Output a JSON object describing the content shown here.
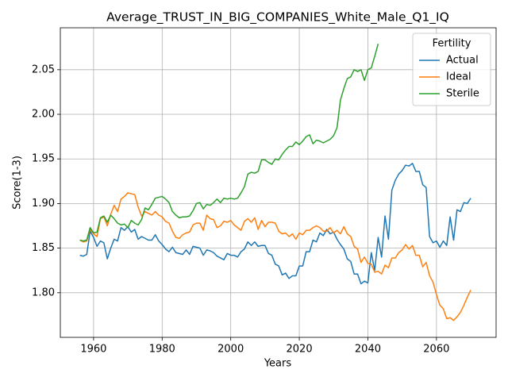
{
  "chart_data": {
    "type": "line",
    "title": "Average_TRUST_IN_BIG_COMPANIES_White_Male_Q1_IQ",
    "xlabel": "Years",
    "ylabel": "Score(1-3)",
    "legend_title": "Fertility",
    "legend": "upper right",
    "grid": true,
    "x": [
      1956,
      1957,
      1958,
      1959,
      1960,
      1961,
      1962,
      1963,
      1964,
      1965,
      1966,
      1967,
      1968,
      1969,
      1970,
      1971,
      1972,
      1973,
      1974,
      1975,
      1976,
      1977,
      1978,
      1979,
      1980,
      1981,
      1982,
      1983,
      1984,
      1985,
      1986,
      1987,
      1988,
      1989,
      1990,
      1991,
      1992,
      1993,
      1994,
      1995,
      1996,
      1997,
      1998,
      1999,
      2000,
      2001,
      2002,
      2003,
      2004,
      2005,
      2006,
      2007,
      2008,
      2009,
      2010,
      2011,
      2012,
      2013,
      2014,
      2015,
      2016,
      2017,
      2018,
      2019,
      2020,
      2021,
      2022,
      2023,
      2024,
      2025,
      2026,
      2027,
      2028,
      2029,
      2030,
      2031,
      2032,
      2033,
      2034,
      2035,
      2036,
      2037,
      2038,
      2039,
      2040,
      2041,
      2042,
      2043,
      2044,
      2045,
      2046,
      2047,
      2048,
      2049,
      2050,
      2051,
      2052,
      2053,
      2054,
      2055,
      2056,
      2057,
      2058,
      2059,
      2060,
      2061,
      2062,
      2063,
      2064,
      2065,
      2066,
      2067,
      2068,
      2069,
      2070
    ],
    "series": [
      {
        "name": "Actual",
        "color": "#1f77b4",
        "values": [
          1.842,
          1.841,
          1.843,
          1.869,
          1.862,
          1.852,
          1.858,
          1.856,
          1.838,
          1.85,
          1.86,
          1.858,
          1.873,
          1.87,
          1.874,
          1.868,
          1.871,
          1.86,
          1.863,
          1.861,
          1.859,
          1.859,
          1.865,
          1.858,
          1.854,
          1.849,
          1.846,
          1.851,
          1.845,
          1.844,
          1.843,
          1.848,
          1.843,
          1.852,
          1.851,
          1.85,
          1.842,
          1.848,
          1.847,
          1.845,
          1.841,
          1.839,
          1.837,
          1.844,
          1.842,
          1.842,
          1.84,
          1.846,
          1.849,
          1.857,
          1.853,
          1.857,
          1.852,
          1.853,
          1.853,
          1.844,
          1.842,
          1.832,
          1.83,
          1.82,
          1.822,
          1.816,
          1.819,
          1.819,
          1.83,
          1.83,
          1.846,
          1.846,
          1.859,
          1.857,
          1.867,
          1.864,
          1.871,
          1.866,
          1.868,
          1.86,
          1.854,
          1.849,
          1.838,
          1.835,
          1.821,
          1.821,
          1.81,
          1.813,
          1.811,
          1.845,
          1.825,
          1.862,
          1.84,
          1.886,
          1.86,
          1.915,
          1.926,
          1.933,
          1.937,
          1.943,
          1.942,
          1.945,
          1.936,
          1.936,
          1.921,
          1.918,
          1.863,
          1.856,
          1.858,
          1.851,
          1.858,
          1.853,
          1.885,
          1.859,
          1.893,
          1.891,
          1.901,
          1.9,
          1.906
        ]
      },
      {
        "name": "Ideal",
        "color": "#ff7f0e",
        "values": [
          1.859,
          1.857,
          1.858,
          1.871,
          1.866,
          1.863,
          1.883,
          1.885,
          1.875,
          1.888,
          1.898,
          1.891,
          1.905,
          1.908,
          1.912,
          1.911,
          1.91,
          1.896,
          1.886,
          1.891,
          1.889,
          1.887,
          1.891,
          1.887,
          1.885,
          1.88,
          1.878,
          1.869,
          1.862,
          1.861,
          1.865,
          1.867,
          1.868,
          1.876,
          1.878,
          1.878,
          1.87,
          1.887,
          1.883,
          1.882,
          1.873,
          1.875,
          1.88,
          1.879,
          1.881,
          1.876,
          1.873,
          1.87,
          1.88,
          1.883,
          1.879,
          1.884,
          1.871,
          1.881,
          1.874,
          1.879,
          1.879,
          1.878,
          1.869,
          1.866,
          1.867,
          1.863,
          1.866,
          1.86,
          1.867,
          1.865,
          1.87,
          1.87,
          1.873,
          1.875,
          1.873,
          1.869,
          1.869,
          1.873,
          1.867,
          1.87,
          1.866,
          1.874,
          1.866,
          1.863,
          1.852,
          1.849,
          1.834,
          1.84,
          1.833,
          1.832,
          1.823,
          1.824,
          1.821,
          1.831,
          1.828,
          1.839,
          1.839,
          1.845,
          1.848,
          1.854,
          1.849,
          1.853,
          1.842,
          1.842,
          1.829,
          1.834,
          1.819,
          1.812,
          1.798,
          1.786,
          1.782,
          1.771,
          1.772,
          1.769,
          1.773,
          1.778,
          1.786,
          1.795,
          1.803
        ]
      },
      {
        "name": "Sterile",
        "color": "#2ca02c",
        "values": [
          1.859,
          1.858,
          1.859,
          1.873,
          1.867,
          1.868,
          1.884,
          1.886,
          1.879,
          1.887,
          1.883,
          1.878,
          1.876,
          1.877,
          1.873,
          1.881,
          1.878,
          1.876,
          1.882,
          1.895,
          1.893,
          1.899,
          1.906,
          1.907,
          1.908,
          1.905,
          1.901,
          1.891,
          1.887,
          1.884,
          1.885,
          1.885,
          1.886,
          1.892,
          1.9,
          1.901,
          1.894,
          1.899,
          1.898,
          1.901,
          1.905,
          1.901,
          1.906,
          1.905,
          1.906,
          1.905,
          1.906,
          1.912,
          1.919,
          1.933,
          1.935,
          1.934,
          1.936,
          1.949,
          1.949,
          1.946,
          1.944,
          1.95,
          1.949,
          1.955,
          1.96,
          1.964,
          1.964,
          1.969,
          1.966,
          1.97,
          1.975,
          1.977,
          1.967,
          1.971,
          1.97,
          1.968,
          1.97,
          1.972,
          1.976,
          1.985,
          2.016,
          2.029,
          2.04,
          2.042,
          2.05,
          2.048,
          2.05,
          2.038,
          2.05,
          2.052,
          2.065,
          2.079,
          null,
          null,
          null,
          null,
          null,
          null,
          null,
          null,
          null,
          null,
          null,
          null,
          null,
          null,
          null,
          null,
          null,
          null,
          null,
          null,
          null,
          null,
          null,
          null,
          null,
          null,
          null
        ]
      }
    ],
    "xlim": [
      1950.3,
      2077.4
    ],
    "xticks": [
      1960,
      1980,
      2000,
      2020,
      2040,
      2060
    ],
    "ylim": [
      1.75,
      2.097
    ],
    "yticks": [
      {
        "value": 1.8,
        "label": "1.80"
      },
      1.85,
      {
        "value": 1.9,
        "label": "1.90"
      },
      1.95,
      {
        "value": 2.0,
        "label": "2.00"
      },
      2.05
    ]
  }
}
